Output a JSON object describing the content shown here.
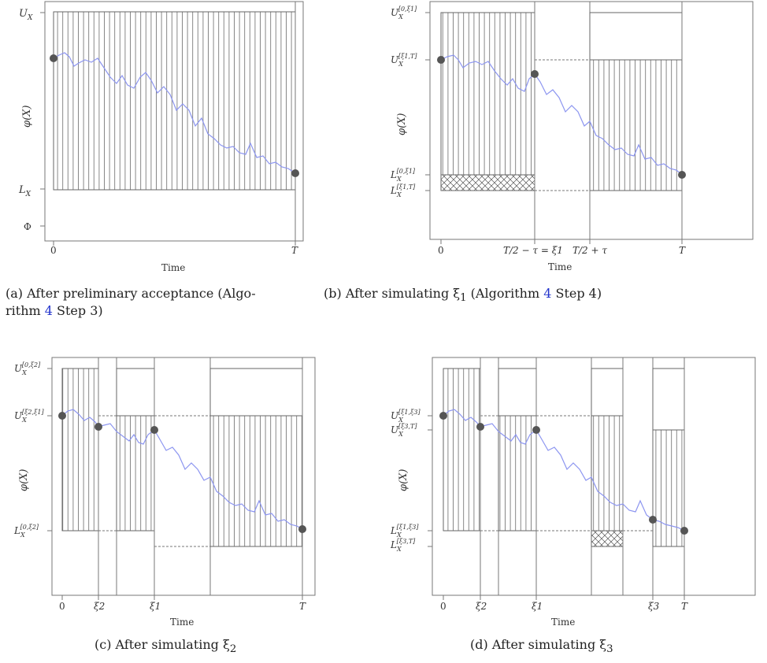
{
  "figure": {
    "axis_label_x": "Time",
    "axis_label_y": "φ(X)",
    "panel_a": {
      "caption_prefix": "(a) After preliminary acceptance (Algo-",
      "caption_line2_prefix": "rithm ",
      "caption_ref": "4",
      "caption_suffix": " Step 3)",
      "y_labels": {
        "U": "U",
        "U_sub": "X",
        "L": "L",
        "L_sub": "X",
        "Phi": "Φ"
      },
      "x_labels": {
        "zero": "0",
        "T": "T"
      }
    },
    "panel_b": {
      "caption_prefix": "(b) After simulating ξ",
      "caption_sub": "1",
      "caption_mid": " (Algorithm ",
      "caption_ref": "4",
      "caption_suffix": " Step 4)",
      "y_labels": {
        "U_top": "U",
        "U_top_sub": "X",
        "U_top_sup": "[0,ξ1]",
        "U_mid": "U",
        "U_mid_sub": "X",
        "U_mid_sup": "[ξ1,T]",
        "L_up": "L",
        "L_up_sub": "X",
        "L_up_sup": "[0,ξ1]",
        "L_low": "L",
        "L_low_sub": "X",
        "L_low_sup": "[ξ1,T]"
      },
      "x_labels": {
        "zero": "0",
        "left": "T/2 − τ = ξ1",
        "right": "T/2 + τ",
        "T": "T"
      }
    },
    "panel_c": {
      "caption_prefix": "(c) After simulating ξ",
      "caption_sub": "2",
      "y_labels": {
        "U_top": "U",
        "U_top_sub": "X",
        "U_top_sup": "[0,ξ2]",
        "U_mid": "U",
        "U_mid_sub": "X",
        "U_mid_sup": "[ξ2,ξ1]",
        "L": "L",
        "L_sub": "X",
        "L_sup": "[0,ξ2]"
      },
      "x_labels": {
        "zero": "0",
        "xi2": "ξ2",
        "xi1": "ξ1",
        "T": "T"
      }
    },
    "panel_d": {
      "caption_prefix": "(d) After simulating ξ",
      "caption_sub": "3",
      "y_labels": {
        "U_a": "U",
        "U_a_sub": "X",
        "U_a_sup": "[ξ1,ξ3]",
        "U_b": "U",
        "U_b_sub": "X",
        "U_b_sup": "[ξ3,T]",
        "L_a": "L",
        "L_a_sub": "X",
        "L_a_sup": "[ξ1,ξ3]",
        "L_b": "L",
        "L_b_sub": "X",
        "L_b_sup": "[ξ3,T]"
      },
      "x_labels": {
        "zero": "0",
        "xi2": "ξ2",
        "xi1": "ξ1",
        "xi3": "ξ3",
        "T": "T"
      }
    },
    "colors": {
      "path": "#8c95f0",
      "frame": "#777777",
      "dot": "#555555",
      "hatch": "#555555"
    }
  }
}
